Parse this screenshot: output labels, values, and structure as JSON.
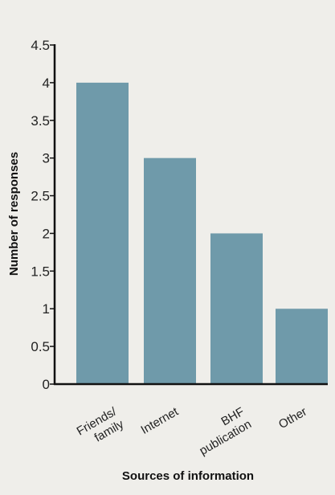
{
  "chart_data": {
    "type": "bar",
    "categories": [
      [
        "Friends/",
        "family"
      ],
      [
        "Internet"
      ],
      [
        "BHF",
        "publication"
      ],
      [
        "Other"
      ]
    ],
    "values": [
      4,
      3,
      2,
      1
    ],
    "xlabel": "Sources of information",
    "ylabel": "Number of responses",
    "ylim": [
      0,
      4.5
    ],
    "yticks": [
      "0",
      "0.5",
      "1",
      "1.5",
      "2",
      "2.5",
      "3",
      "3.5",
      "4",
      "4.5"
    ],
    "bar_color": "#6f9aaa",
    "grid": false
  }
}
